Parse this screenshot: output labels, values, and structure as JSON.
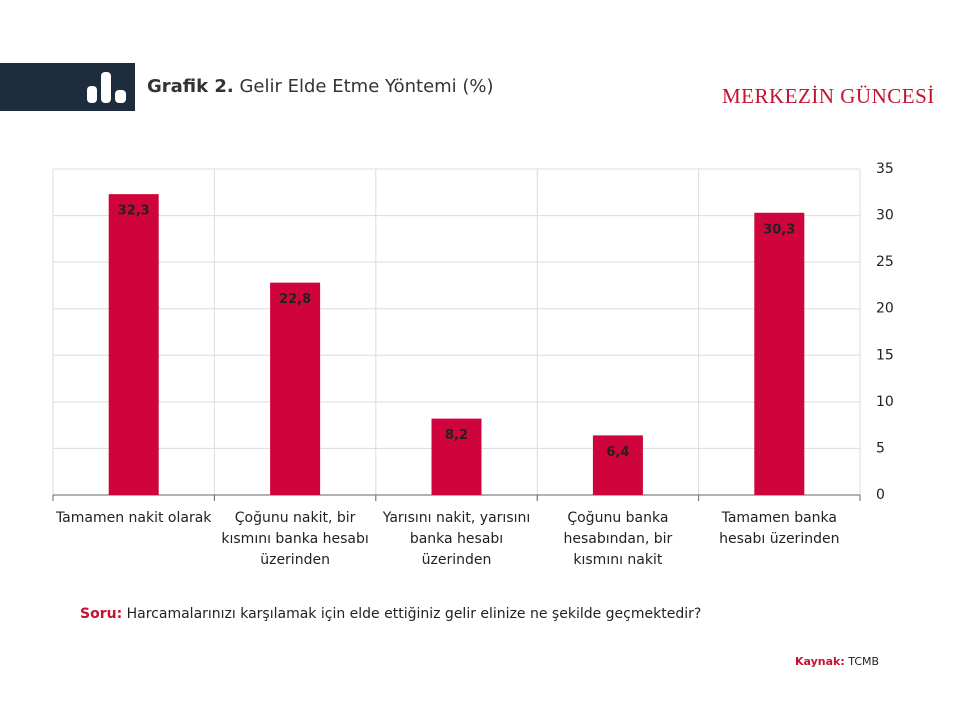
{
  "chart_data": {
    "type": "bar",
    "title_label": "Grafik 2.",
    "title": "Gelir Elde Etme Yöntemi (%)",
    "brand": "MERKEZİN GÜNCESİ",
    "categories": [
      "Tamamen nakit olarak",
      "Çoğunu nakit, bir kısmını banka hesabı üzerinden",
      "Yarısını nakit, yarısını banka hesabı üzerinden",
      "Çoğunu banka hesabından, bir kısmını nakit",
      "Tamamen banka hesabı üzerinden"
    ],
    "values": [
      32.3,
      22.8,
      8.2,
      6.4,
      30.3
    ],
    "value_labels": [
      "32,3",
      "22,8",
      "8,2",
      "6,4",
      "30,3"
    ],
    "color": "#d0043c",
    "ylim": [
      0,
      35
    ],
    "yticks": [
      0,
      5,
      10,
      15,
      20,
      25,
      30,
      35
    ],
    "y_axis_side": "right",
    "grid": true,
    "question_label": "Soru:",
    "question": "Harcamalarınızı karşılamak için elde ettiğiniz gelir elinize ne şekilde geçmektedir?",
    "source_label": "Kaynak:",
    "source": "TCMB"
  }
}
